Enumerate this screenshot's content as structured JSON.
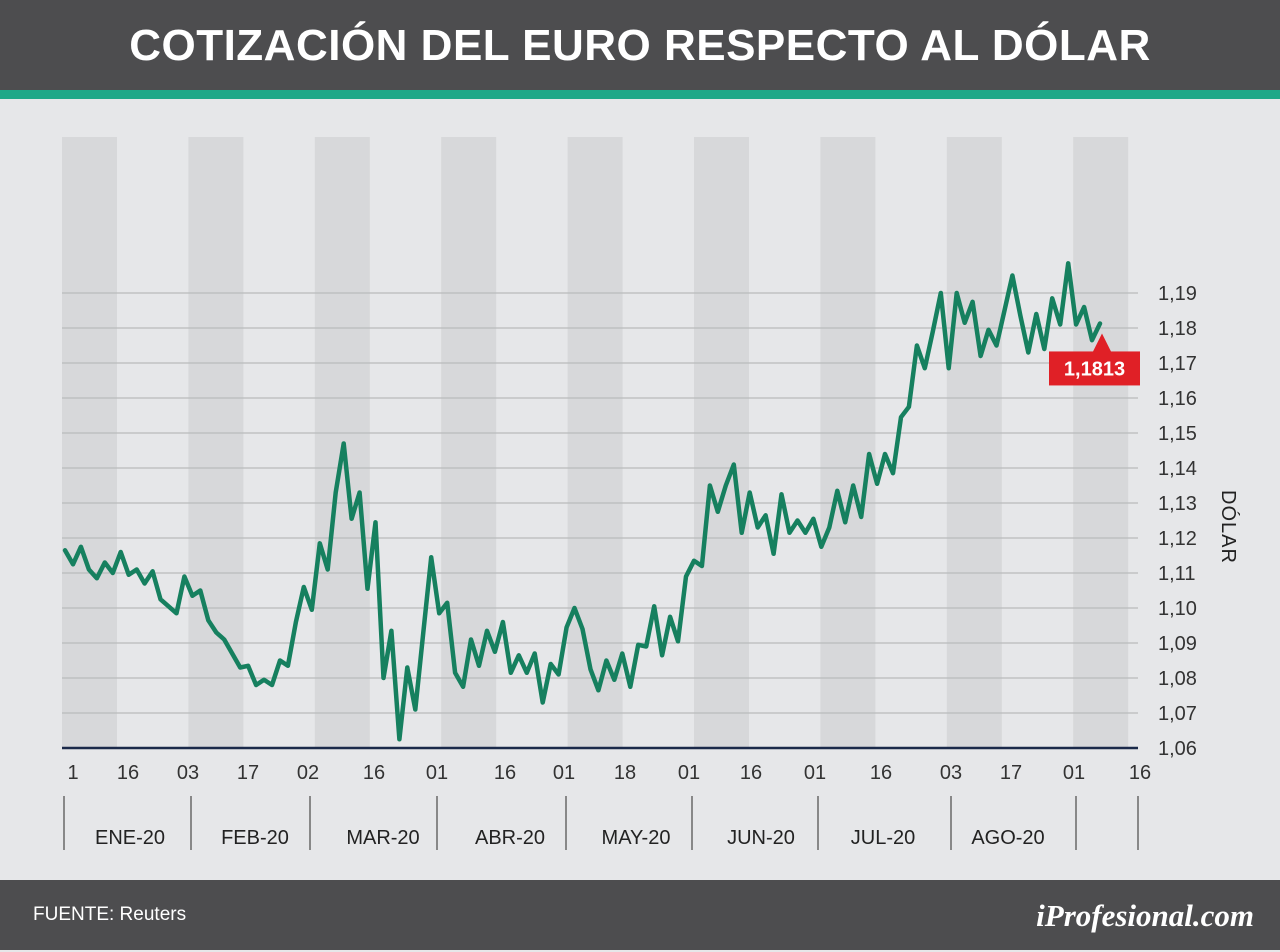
{
  "header": {
    "title": "COTIZACIÓN DEL EURO RESPECTO AL DÓLAR"
  },
  "footer": {
    "source": "FUENTE: Reuters",
    "brand": "iProfesional.com"
  },
  "colors": {
    "header_bg": "#4d4d4f",
    "accent": "#1fa888",
    "line": "#16805f",
    "callout": "#e02026",
    "band": "#d7d8da"
  },
  "chart_data": {
    "type": "line",
    "title": "COTIZACIÓN DEL EURO RESPECTO AL DÓLAR",
    "ylabel": "DÓLAR",
    "xlabel": "",
    "ylim": [
      1.06,
      1.2
    ],
    "yticks": [
      "1,06",
      "1,07",
      "1,08",
      "1,09",
      "1,10",
      "1,11",
      "1,12",
      "1,13",
      "1,14",
      "1,15",
      "1,16",
      "1,17",
      "1,18",
      "1,19"
    ],
    "xticks": [
      "1",
      "16",
      "03",
      "17",
      "02",
      "16",
      "01",
      "16",
      "01",
      "18",
      "01",
      "16",
      "01",
      "16",
      "03",
      "17",
      "01",
      "16"
    ],
    "months": [
      "ENE-20",
      "FEB-20",
      "MAR-20",
      "ABR-20",
      "MAY-20",
      "JUN-20",
      "JUL-20",
      "AGO-20"
    ],
    "grid": true,
    "last_value_label": "1,1813",
    "series": [
      {
        "values": [
          1.1165,
          1.1125,
          1.1175,
          1.111,
          1.1085,
          1.113,
          1.11,
          1.116,
          1.1095,
          1.111,
          1.107,
          1.1105,
          1.1025,
          1.1005,
          1.0985,
          1.109,
          1.1035,
          1.105,
          1.0965,
          1.093,
          1.091,
          1.087,
          1.083,
          1.0835,
          1.078,
          1.0795,
          1.078,
          1.085,
          1.0835,
          1.096,
          1.106,
          1.0995,
          1.1185,
          1.111,
          1.133,
          1.147,
          1.1255,
          1.133,
          1.1055,
          1.1245,
          1.08,
          1.0935,
          1.0625,
          1.083,
          1.071,
          1.093,
          1.1145,
          1.0985,
          1.1015,
          1.0815,
          1.0775,
          1.091,
          1.0835,
          1.0935,
          1.0875,
          1.096,
          1.0815,
          1.0865,
          1.0815,
          1.087,
          1.073,
          1.084,
          1.081,
          1.0945,
          1.1,
          1.094,
          1.0825,
          1.0765,
          1.085,
          1.0795,
          1.087,
          1.0775,
          1.0895,
          1.089,
          1.1005,
          1.0865,
          1.0975,
          1.0905,
          1.109,
          1.1135,
          1.112,
          1.135,
          1.1275,
          1.135,
          1.141,
          1.1215,
          1.133,
          1.123,
          1.1265,
          1.1155,
          1.1325,
          1.1215,
          1.125,
          1.1215,
          1.1255,
          1.1175,
          1.123,
          1.1335,
          1.1245,
          1.135,
          1.126,
          1.144,
          1.1355,
          1.144,
          1.1385,
          1.1545,
          1.1575,
          1.175,
          1.1685,
          1.179,
          1.19,
          1.1685,
          1.19,
          1.1815,
          1.1875,
          1.172,
          1.1795,
          1.175,
          1.185,
          1.195,
          1.1835,
          1.173,
          1.184,
          1.174,
          1.1885,
          1.181,
          1.1985,
          1.181,
          1.186,
          1.1765,
          1.1813
        ]
      }
    ]
  }
}
